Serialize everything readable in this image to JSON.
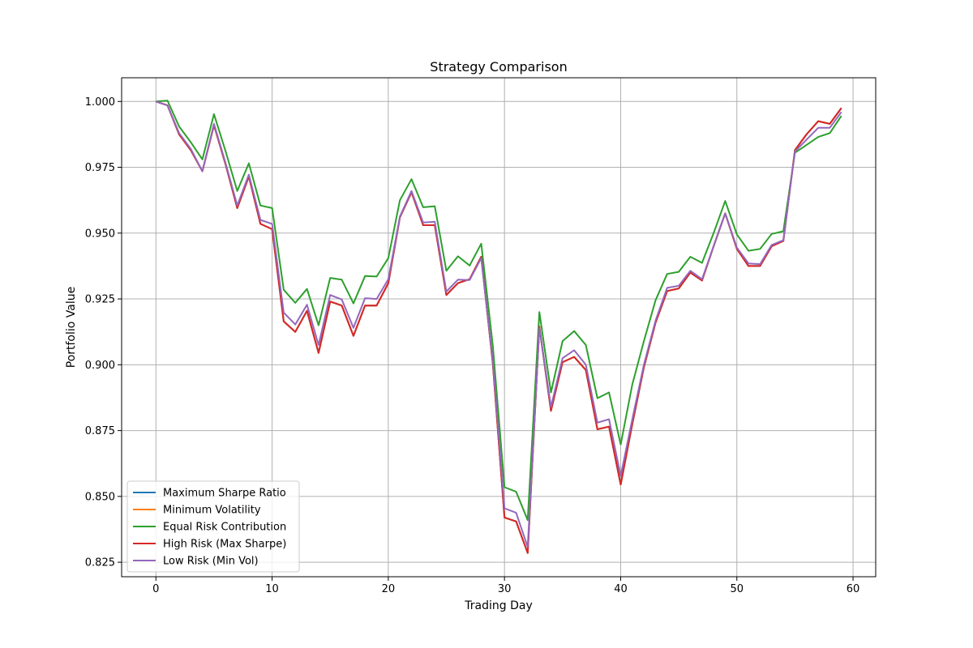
{
  "chart_data": {
    "type": "line",
    "title": "Strategy Comparison",
    "xlabel": "Trading Day",
    "ylabel": "Portfolio Value",
    "xlim": [
      -2.95,
      61.95
    ],
    "ylim": [
      0.8195,
      1.009
    ],
    "xticks": [
      0,
      10,
      20,
      30,
      40,
      50,
      60
    ],
    "yticks": [
      0.825,
      0.85,
      0.875,
      0.9,
      0.925,
      0.95,
      0.975,
      1.0
    ],
    "ytick_labels": [
      "0.825",
      "0.850",
      "0.875",
      "0.900",
      "0.925",
      "0.950",
      "0.975",
      "1.000"
    ],
    "grid": true,
    "legend_position": "lower-left",
    "x": [
      0,
      1,
      2,
      3,
      4,
      5,
      6,
      7,
      8,
      9,
      10,
      11,
      12,
      13,
      14,
      15,
      16,
      17,
      18,
      19,
      20,
      21,
      22,
      23,
      24,
      25,
      26,
      27,
      28,
      29,
      30,
      31,
      32,
      33,
      34,
      35,
      36,
      37,
      38,
      39,
      40,
      41,
      42,
      43,
      44,
      45,
      46,
      47,
      48,
      49,
      50,
      51,
      52,
      53,
      54,
      55,
      56,
      57,
      58,
      59
    ],
    "series": [
      {
        "name": "Maximum Sharpe Ratio",
        "color": "#1f77b4",
        "values": [
          1.0,
          0.9985,
          0.9875,
          0.9815,
          0.9735,
          0.991,
          0.976,
          0.9595,
          0.9715,
          0.9535,
          0.9515,
          0.9165,
          0.9125,
          0.9205,
          0.9045,
          0.924,
          0.9225,
          0.911,
          0.9225,
          0.9225,
          0.931,
          0.956,
          0.9655,
          0.953,
          0.953,
          0.9265,
          0.931,
          0.9325,
          0.941,
          0.9005,
          0.842,
          0.8405,
          0.8285,
          0.9145,
          0.8825,
          0.901,
          0.903,
          0.898,
          0.8755,
          0.8765,
          0.8545,
          0.8775,
          0.899,
          0.916,
          0.928,
          0.929,
          0.935,
          0.932,
          0.945,
          0.9575,
          0.944,
          0.9375,
          0.9375,
          0.945,
          0.947,
          0.9815,
          0.9875,
          0.9925,
          0.9915,
          0.9975
        ]
      },
      {
        "name": "Minimum Volatility",
        "color": "#ff7f0e",
        "values": [
          1.0,
          0.9985,
          0.9875,
          0.9815,
          0.9735,
          0.991,
          0.976,
          0.9595,
          0.9715,
          0.9535,
          0.9515,
          0.9165,
          0.9125,
          0.9205,
          0.9045,
          0.924,
          0.9225,
          0.911,
          0.9225,
          0.9225,
          0.931,
          0.956,
          0.9655,
          0.953,
          0.953,
          0.9265,
          0.931,
          0.9325,
          0.941,
          0.9005,
          0.842,
          0.8405,
          0.8285,
          0.9145,
          0.8825,
          0.901,
          0.903,
          0.898,
          0.8755,
          0.8765,
          0.8545,
          0.8775,
          0.899,
          0.916,
          0.928,
          0.929,
          0.935,
          0.932,
          0.945,
          0.9575,
          0.944,
          0.9375,
          0.9375,
          0.945,
          0.947,
          0.9815,
          0.9875,
          0.9925,
          0.9915,
          0.9975
        ]
      },
      {
        "name": "Equal Risk Contribution",
        "color": "#2ca02c",
        "values": [
          1.0,
          1.0003,
          0.9905,
          0.9845,
          0.978,
          0.9952,
          0.981,
          0.966,
          0.9765,
          0.9605,
          0.9595,
          0.9285,
          0.9235,
          0.9288,
          0.915,
          0.933,
          0.9323,
          0.9233,
          0.9337,
          0.9335,
          0.9405,
          0.9625,
          0.9705,
          0.9598,
          0.9602,
          0.9357,
          0.9412,
          0.9377,
          0.946,
          0.9072,
          0.8535,
          0.8518,
          0.841,
          0.92,
          0.8895,
          0.909,
          0.9128,
          0.9075,
          0.8873,
          0.8895,
          0.8697,
          0.8925,
          0.909,
          0.9245,
          0.9345,
          0.9353,
          0.941,
          0.9387,
          0.95,
          0.9622,
          0.9495,
          0.9433,
          0.944,
          0.9497,
          0.9507,
          0.9805,
          0.9835,
          0.9865,
          0.988,
          0.9945
        ]
      },
      {
        "name": "High Risk (Max Sharpe)",
        "color": "#d62728",
        "values": [
          1.0,
          0.9985,
          0.9875,
          0.9815,
          0.9735,
          0.991,
          0.976,
          0.9595,
          0.9715,
          0.9535,
          0.9515,
          0.9165,
          0.9125,
          0.9205,
          0.9045,
          0.924,
          0.9225,
          0.911,
          0.9225,
          0.9225,
          0.931,
          0.956,
          0.9655,
          0.953,
          0.953,
          0.9265,
          0.931,
          0.9325,
          0.941,
          0.9005,
          0.842,
          0.8405,
          0.8285,
          0.9145,
          0.8825,
          0.901,
          0.903,
          0.898,
          0.8755,
          0.8765,
          0.8545,
          0.8775,
          0.899,
          0.916,
          0.928,
          0.929,
          0.935,
          0.932,
          0.945,
          0.9575,
          0.944,
          0.9375,
          0.9375,
          0.945,
          0.947,
          0.9815,
          0.9875,
          0.9925,
          0.9915,
          0.9975
        ]
      },
      {
        "name": "Low Risk (Min Vol)",
        "color": "#9467bd",
        "values": [
          1.0,
          0.9985,
          0.988,
          0.982,
          0.9735,
          0.9915,
          0.9765,
          0.9605,
          0.9722,
          0.955,
          0.9535,
          0.9198,
          0.9153,
          0.9228,
          0.9075,
          0.9265,
          0.9248,
          0.914,
          0.9253,
          0.925,
          0.9325,
          0.9563,
          0.966,
          0.954,
          0.9543,
          0.9278,
          0.9323,
          0.9322,
          0.9405,
          0.9015,
          0.8455,
          0.8438,
          0.8308,
          0.914,
          0.884,
          0.9025,
          0.9055,
          0.9,
          0.878,
          0.8793,
          0.8578,
          0.8793,
          0.9,
          0.9168,
          0.9292,
          0.93,
          0.9357,
          0.9325,
          0.945,
          0.9575,
          0.9445,
          0.9385,
          0.9382,
          0.9455,
          0.9473,
          0.981,
          0.9855,
          0.99,
          0.99,
          0.996
        ]
      }
    ]
  }
}
